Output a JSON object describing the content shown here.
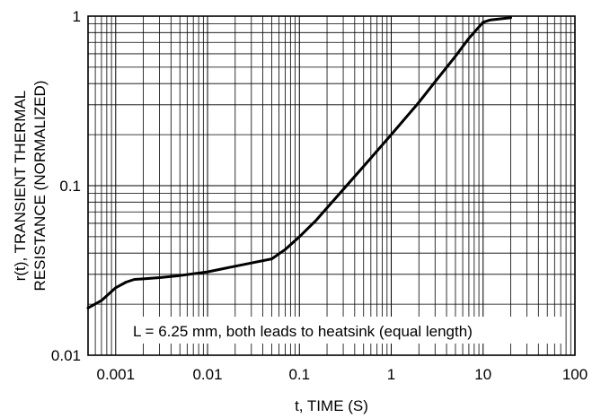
{
  "chart_data": {
    "type": "line",
    "xscale": "log",
    "yscale": "log",
    "xlim": [
      0.0005,
      100
    ],
    "ylim": [
      0.01,
      1
    ],
    "xlabel": "t, TIME (S)",
    "ylabel_lines": [
      "r(t), TRANSIENT THERMAL",
      "RESISTANCE (NORMALIZED)"
    ],
    "x_ticks": [
      {
        "value": 0.001,
        "label": "0.001"
      },
      {
        "value": 0.01,
        "label": "0.01"
      },
      {
        "value": 0.1,
        "label": "0.1"
      },
      {
        "value": 1,
        "label": "1"
      },
      {
        "value": 10,
        "label": "10"
      },
      {
        "value": 100,
        "label": "100"
      }
    ],
    "y_ticks": [
      {
        "value": 0.01,
        "label": "0.01"
      },
      {
        "value": 0.1,
        "label": "0.1"
      },
      {
        "value": 1,
        "label": "1"
      }
    ],
    "grid": true,
    "annotation": "L = 6.25 mm, both leads to heatsink (equal length)",
    "series": [
      {
        "x": [
          0.0005,
          0.0007,
          0.001,
          0.0013,
          0.0016,
          0.002,
          0.003,
          0.005,
          0.01,
          0.02,
          0.03,
          0.05,
          0.07,
          0.1,
          0.15,
          0.2,
          0.3,
          0.5,
          1,
          2,
          3,
          5,
          7,
          10,
          12,
          20
        ],
        "y": [
          0.019,
          0.021,
          0.025,
          0.027,
          0.028,
          0.0282,
          0.0287,
          0.0295,
          0.031,
          0.0335,
          0.035,
          0.037,
          0.042,
          0.05,
          0.062,
          0.074,
          0.095,
          0.13,
          0.2,
          0.31,
          0.41,
          0.58,
          0.74,
          0.92,
          0.95,
          0.98
        ]
      }
    ]
  }
}
